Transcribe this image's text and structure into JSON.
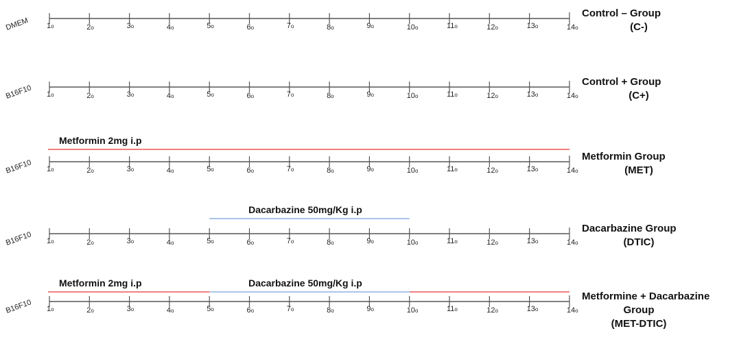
{
  "timelines": [
    {
      "cell_label": "DMEM",
      "group_label_lines": [
        "Control – Group",
        "(C-)"
      ],
      "treatments": []
    },
    {
      "cell_label": "B16F10",
      "group_label_lines": [
        "Control + Group",
        "(C+)"
      ],
      "treatments": []
    },
    {
      "cell_label": "B16F10",
      "group_label_lines": [
        "Metformin  Group",
        "(MET)"
      ],
      "treatments": [
        {
          "label": "Metformin 2mg i.p",
          "start_day": 1,
          "end_day": 14,
          "color": "#f08080"
        }
      ]
    },
    {
      "cell_label": "B16F10",
      "group_label_lines": [
        "Dacarbazine Group",
        "(DTIC)"
      ],
      "treatments": [
        {
          "label": "Dacarbazine 50mg/Kg i.p",
          "start_day": 5,
          "end_day": 10,
          "color": "#a9c4e8"
        }
      ]
    },
    {
      "cell_label": "B16F10",
      "group_label_lines": [
        "Metformine + Dacarbazine",
        "Group",
        "(MET-DTIC)"
      ],
      "treatments": [
        {
          "label": "Metformin 2mg i.p",
          "start_day": 1,
          "end_day": 14,
          "color": "#f08080"
        },
        {
          "label": "Dacarbazine 50mg/Kg i.p",
          "start_day": 5,
          "end_day": 10,
          "color": "#a9c4e8"
        }
      ]
    }
  ],
  "days": [
    {
      "day": 1,
      "label": "1",
      "sup": "o"
    },
    {
      "day": 2,
      "label": "2",
      "sup": "o"
    },
    {
      "day": 3,
      "label": "3",
      "sup": "o"
    },
    {
      "day": 4,
      "label": "4",
      "sup": "o"
    },
    {
      "day": 5,
      "label": "5",
      "sup": "o"
    },
    {
      "day": 6,
      "label": "6",
      "sup": "o"
    },
    {
      "day": 7,
      "label": "7",
      "sup": "o"
    },
    {
      "day": 8,
      "label": "8",
      "sup": "o"
    },
    {
      "day": 9,
      "label": "9",
      "sup": "o"
    },
    {
      "day": 10,
      "label": "10",
      "sup": "o"
    },
    {
      "day": 11,
      "label": "11",
      "sup": "o"
    },
    {
      "day": 12,
      "label": "12",
      "sup": "o"
    },
    {
      "day": 13,
      "label": "13",
      "sup": "o"
    },
    {
      "day": 14,
      "label": "14",
      "sup": "o"
    }
  ],
  "colors": {
    "axis": "#555555",
    "metformin_bar": "#f08080",
    "dacarbazine_bar": "#a9c4e8"
  }
}
